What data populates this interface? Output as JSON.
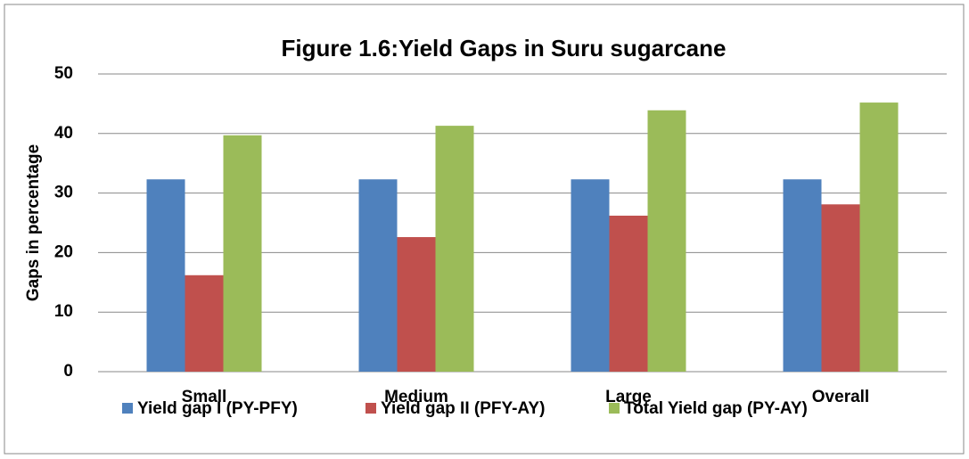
{
  "chart_data": {
    "type": "bar",
    "title": "Figure 1.6:Yield Gaps in Suru sugarcane",
    "y_label": "Gaps in percentage",
    "categories": [
      "Small",
      "Medium",
      "Large",
      "Overall"
    ],
    "series": [
      {
        "name": "Yield gap I (PY-PFY)",
        "color": "#4f81bd",
        "values": [
          32.3,
          32.3,
          32.3,
          32.3
        ]
      },
      {
        "name": "Yield gap II (PFY-AY)",
        "color": "#c0504d",
        "values": [
          16.2,
          22.6,
          26.2,
          28.1
        ]
      },
      {
        "name": "Total Yield gap (PY-AY)",
        "color": "#9bbb59",
        "values": [
          39.7,
          41.3,
          43.9,
          45.2
        ]
      }
    ],
    "ylim": [
      0,
      50
    ],
    "yticks": [
      0,
      10,
      20,
      30,
      40,
      50
    ],
    "grid": true,
    "legend": "bottom"
  }
}
